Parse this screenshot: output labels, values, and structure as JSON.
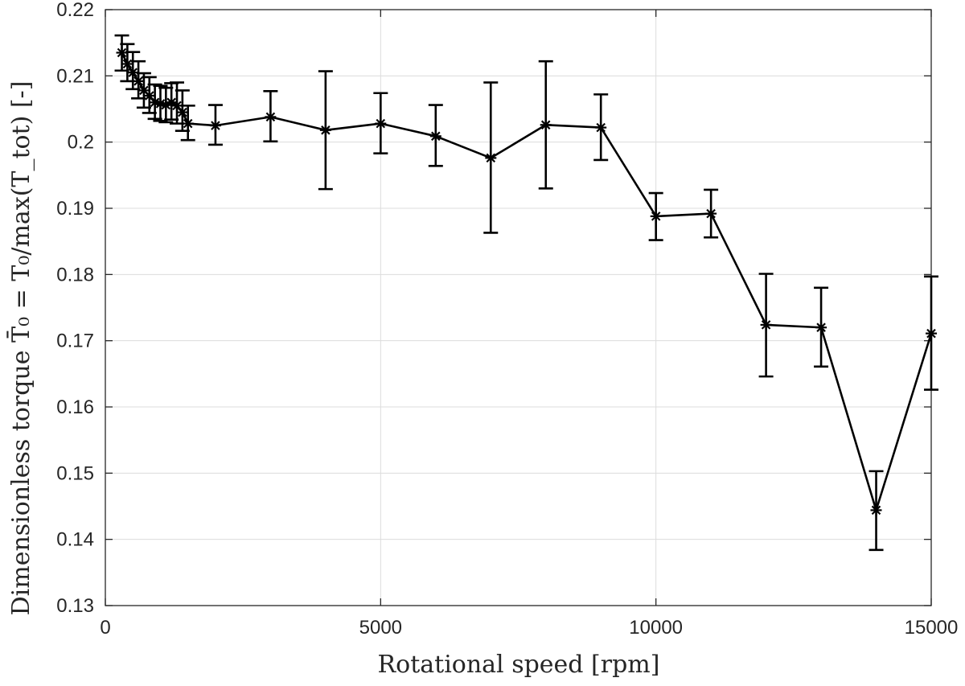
{
  "chart_data": {
    "type": "line",
    "title": "",
    "xlabel": "Rotational speed [rpm]",
    "ylabel": "Dimensionless torque T̄₀ = T₀/max(T_tot) [-]",
    "xlim": [
      0,
      15000
    ],
    "ylim": [
      0.13,
      0.22
    ],
    "xticks": [
      0,
      5000,
      10000,
      15000
    ],
    "xtick_labels": [
      "0",
      "5000",
      "10000",
      "15000"
    ],
    "yticks": [
      0.13,
      0.14,
      0.15,
      0.16,
      0.17,
      0.18,
      0.19,
      0.2,
      0.21,
      0.22
    ],
    "ytick_labels": [
      "0.13",
      "0.14",
      "0.15",
      "0.16",
      "0.17",
      "0.18",
      "0.19",
      "0.2",
      "0.21",
      "0.22"
    ],
    "grid": true,
    "legend": false,
    "marker": "asterisk",
    "line_color": "#000000",
    "series": [
      {
        "x": [
          300,
          400,
          500,
          600,
          700,
          800,
          900,
          1000,
          1100,
          1200,
          1300,
          1400,
          1500,
          2000,
          3000,
          4000,
          5000,
          6000,
          7000,
          8000,
          9000,
          10000,
          11000,
          12000,
          13000,
          14000,
          15000
        ],
        "y": [
          0.2135,
          0.2118,
          0.2105,
          0.2092,
          0.2078,
          0.207,
          0.206,
          0.2058,
          0.2056,
          0.206,
          0.2055,
          0.2045,
          0.2028,
          0.2025,
          0.2038,
          0.2018,
          0.2028,
          0.2009,
          0.1976,
          0.2026,
          0.2022,
          0.1888,
          0.1892,
          0.1724,
          0.172,
          0.1444,
          0.1711
        ],
        "err_low": [
          0.2108,
          0.2092,
          0.208,
          0.2066,
          0.2052,
          0.2044,
          0.2035,
          0.2032,
          0.203,
          0.2034,
          0.2028,
          0.2017,
          0.2003,
          0.1996,
          0.2001,
          0.1929,
          0.1983,
          0.1964,
          0.1863,
          0.193,
          0.1973,
          0.1852,
          0.1856,
          0.1646,
          0.1661,
          0.1384,
          0.1626
        ],
        "err_high": [
          0.2161,
          0.2148,
          0.2136,
          0.2122,
          0.2104,
          0.2098,
          0.2087,
          0.2085,
          0.2082,
          0.2089,
          0.209,
          0.2078,
          0.2055,
          0.2056,
          0.2077,
          0.2107,
          0.2074,
          0.2056,
          0.209,
          0.2122,
          0.2072,
          0.1923,
          0.1928,
          0.1801,
          0.178,
          0.1503,
          0.1797
        ]
      }
    ]
  }
}
